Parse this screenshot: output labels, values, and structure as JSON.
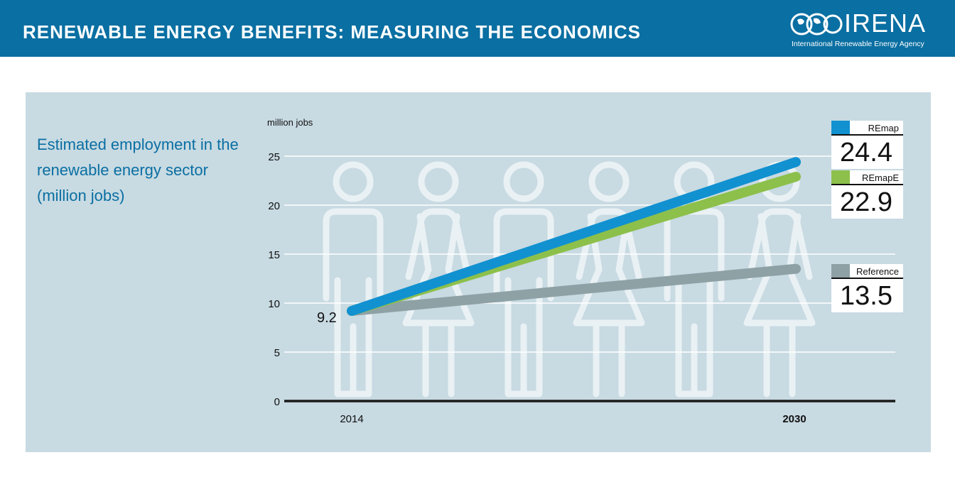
{
  "header": {
    "title": "RENEWABLE ENERGY BENEFITS: MEASURING THE ECONOMICS",
    "logo_text": "IRENA",
    "logo_subtitle": "International Renewable Energy Agency"
  },
  "colors": {
    "header_bg": "#0a6fa2",
    "panel_bg": "#c8dae2",
    "remap": "#1191d0",
    "remape": "#8cc04b",
    "reference": "#8ea1a5"
  },
  "chart_data": {
    "type": "line",
    "title": "Estimated employment in the renewable energy sector (million jobs)",
    "ylabel": "million jobs",
    "ylim": [
      0,
      25
    ],
    "yticks": [
      "0",
      "5",
      "10",
      "15",
      "20",
      "25"
    ],
    "x": [
      "2014",
      "2030"
    ],
    "start_label": "9.2",
    "series": [
      {
        "name": "REmap",
        "values": [
          9.2,
          24.4
        ],
        "end_label": "24.4",
        "color": "#1191d0"
      },
      {
        "name": "REmapE",
        "values": [
          9.2,
          22.9
        ],
        "end_label": "22.9",
        "color": "#8cc04b"
      },
      {
        "name": "Reference",
        "values": [
          9.2,
          13.5
        ],
        "end_label": "13.5",
        "color": "#8ea1a5"
      }
    ],
    "grid": true,
    "legend": "right"
  }
}
